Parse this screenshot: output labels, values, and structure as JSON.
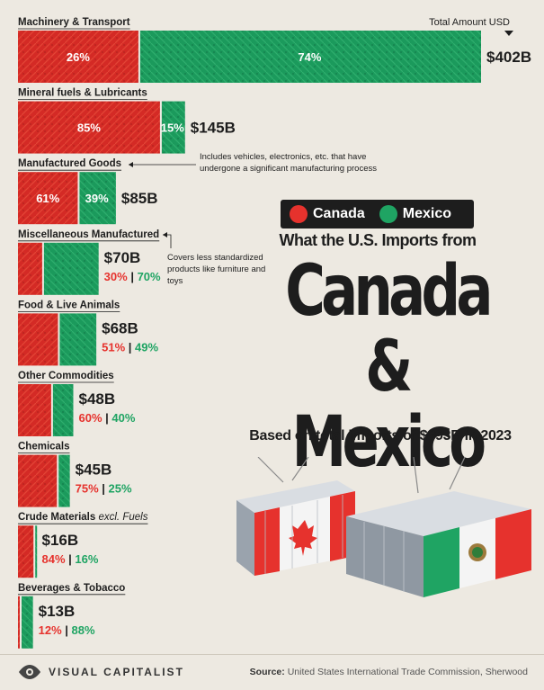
{
  "legend": {
    "canada": "Canada",
    "mexico": "Mexico"
  },
  "headline": {
    "pre": "What the U.S. Imports from",
    "main_line1": "Canada",
    "main_line2": "& Mexico",
    "sub": "Based on total imports of $893B in 2023"
  },
  "total_amount_label": "Total Amount USD",
  "annotations": {
    "manufactured": "Includes vehicles, electronics, etc. that have undergone a significant manufacturing process",
    "misc": "Covers less standardized products like furniture and toys"
  },
  "footer": {
    "brand": "VISUAL CAPITALIST",
    "source_label": "Source:",
    "source_text": "United States International Trade Commission, Sherwood"
  },
  "colors": {
    "canada": "#e6322d",
    "mexico": "#1fa463",
    "text": "#1d1d1d",
    "background": "#ede9e1"
  },
  "chart_data": {
    "type": "bar",
    "orientation": "horizontal",
    "stacked": true,
    "categories": [
      {
        "label": "Machinery & Transport",
        "label_suffix": "",
        "total_label": "$402B",
        "total": 402,
        "canada_pct": 26,
        "mexico_pct": 74
      },
      {
        "label": "Mineral fuels & Lubricants",
        "label_suffix": "",
        "total_label": "$145B",
        "total": 145,
        "canada_pct": 85,
        "mexico_pct": 15
      },
      {
        "label": "Manufactured Goods",
        "label_suffix": "",
        "total_label": "$85B",
        "total": 85,
        "canada_pct": 61,
        "mexico_pct": 39
      },
      {
        "label": "Miscellaneous Manufactured",
        "label_suffix": "",
        "total_label": "$70B",
        "total": 70,
        "canada_pct": 30,
        "mexico_pct": 70
      },
      {
        "label": "Food & Live Animals",
        "label_suffix": "",
        "total_label": "$68B",
        "total": 68,
        "canada_pct": 51,
        "mexico_pct": 49
      },
      {
        "label": "Other Commodities",
        "label_suffix": "",
        "total_label": "$48B",
        "total": 48,
        "canada_pct": 60,
        "mexico_pct": 40
      },
      {
        "label": "Chemicals",
        "label_suffix": "",
        "total_label": "$45B",
        "total": 45,
        "canada_pct": 75,
        "mexico_pct": 25
      },
      {
        "label": "Crude Materials",
        "label_suffix": "excl. Fuels",
        "total_label": "$16B",
        "total": 16,
        "canada_pct": 84,
        "mexico_pct": 16
      },
      {
        "label": "Beverages & Tobacco",
        "label_suffix": "",
        "total_label": "$13B",
        "total": 13,
        "canada_pct": 12,
        "mexico_pct": 88
      }
    ],
    "series": [
      {
        "name": "Canada"
      },
      {
        "name": "Mexico"
      }
    ],
    "unit": "USD"
  }
}
